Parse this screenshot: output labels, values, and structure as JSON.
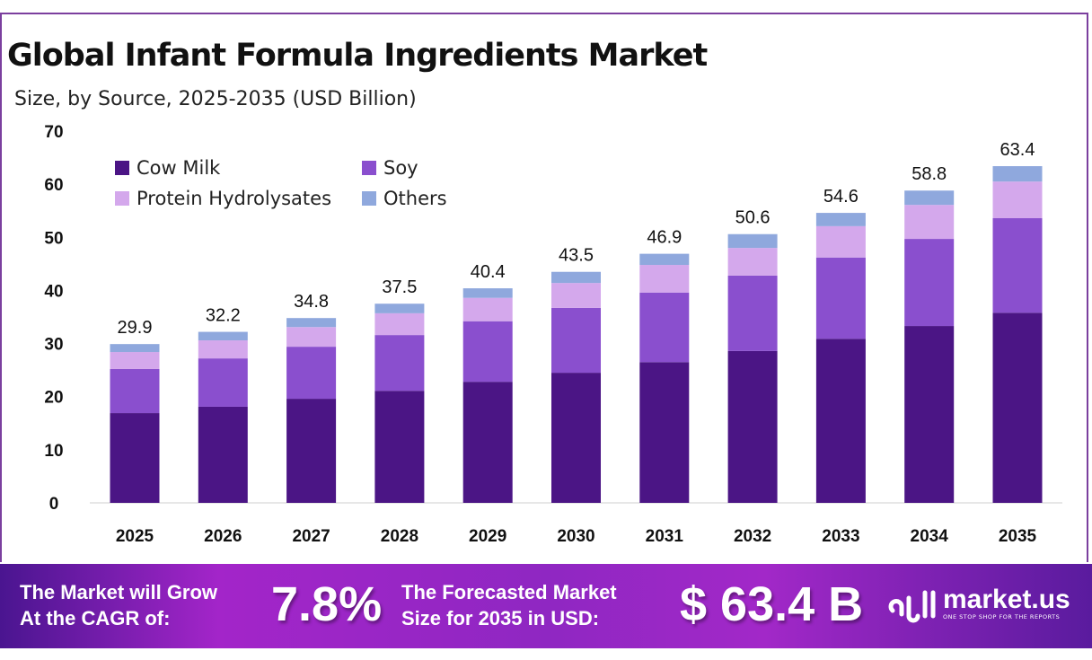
{
  "chart_data": {
    "type": "bar",
    "stacked": true,
    "title": "Global Infant Formula Ingredients Market",
    "subtitle": "Size, by Source, 2025-2035 (USD Billion)",
    "categories": [
      "2025",
      "2026",
      "2027",
      "2028",
      "2029",
      "2030",
      "2031",
      "2032",
      "2033",
      "2034",
      "2035"
    ],
    "series": [
      {
        "name": "Cow Milk",
        "color": "#4b1585",
        "values": [
          16.9,
          18.1,
          19.6,
          21.1,
          22.8,
          24.5,
          26.5,
          28.6,
          30.9,
          33.3,
          35.8
        ]
      },
      {
        "name": "Soy",
        "color": "#8a4fce",
        "values": [
          8.3,
          9.1,
          9.8,
          10.5,
          11.4,
          12.2,
          13.1,
          14.2,
          15.3,
          16.4,
          17.8
        ]
      },
      {
        "name": "Protein Hydrolysates",
        "color": "#d4a8ec",
        "values": [
          3.2,
          3.4,
          3.7,
          4.1,
          4.4,
          4.7,
          5.2,
          5.2,
          5.9,
          6.4,
          6.9
        ]
      },
      {
        "name": "Others",
        "color": "#8fa8dd",
        "values": [
          1.5,
          1.6,
          1.7,
          1.8,
          1.8,
          2.1,
          2.1,
          2.6,
          2.5,
          2.7,
          2.9
        ]
      }
    ],
    "totals": [
      "29.9",
      "32.2",
      "34.8",
      "37.5",
      "40.4",
      "43.5",
      "46.9",
      "50.6",
      "54.6",
      "58.8",
      "63.4"
    ],
    "yticks": [
      "0",
      "10",
      "20",
      "30",
      "40",
      "50",
      "60",
      "70"
    ],
    "ylim": [
      0,
      70
    ],
    "grid": false,
    "legend_position": "top-left"
  },
  "banner": {
    "cagr_label_1": "The Market will Grow",
    "cagr_label_2": "At the CAGR of:",
    "cagr_value": "7.8%",
    "forecast_label_1": "The Forecasted Market",
    "forecast_label_2": "Size for 2035 in USD:",
    "forecast_value": "$ 63.4 B",
    "logo_name": "market.us",
    "logo_tagline": "ONE STOP SHOP FOR THE REPORTS"
  }
}
